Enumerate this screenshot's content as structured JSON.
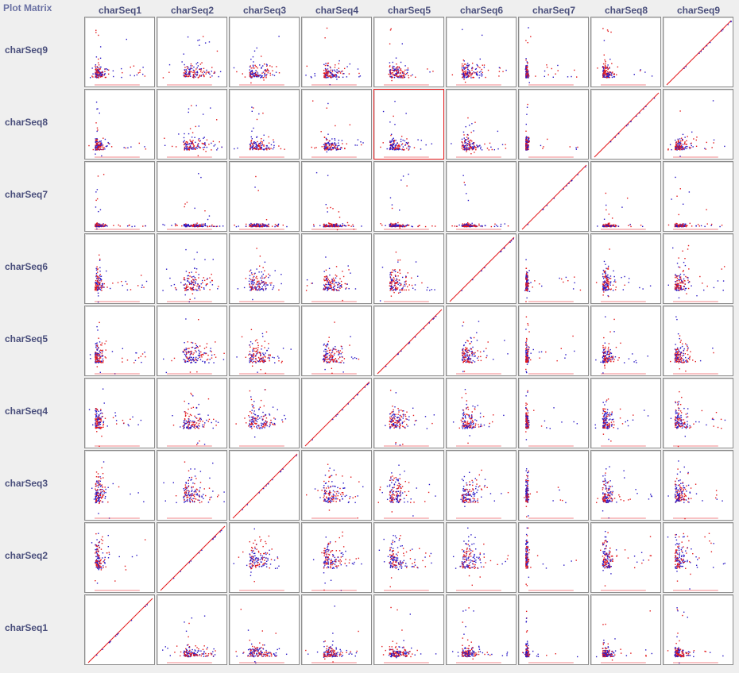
{
  "header": {
    "title": "Plot Matrix"
  },
  "selected_cell": {
    "row": "charSeq8",
    "col": "charSeq5"
  },
  "colors": {
    "series_a": "#e31a1c",
    "series_b": "#2b1ac6",
    "background": "#efefef",
    "cell_border": "#8c8c8c",
    "selected_border": "#e41a1c",
    "label_text": "#4a4f7c"
  },
  "chart_data": {
    "type": "scatter",
    "variables": [
      "charSeq1",
      "charSeq2",
      "charSeq3",
      "charSeq4",
      "charSeq5",
      "charSeq6",
      "charSeq7",
      "charSeq8",
      "charSeq9"
    ],
    "columns": [
      "charSeq1",
      "charSeq2",
      "charSeq3",
      "charSeq4",
      "charSeq5",
      "charSeq6",
      "charSeq7",
      "charSeq8",
      "charSeq9"
    ],
    "rows": [
      "charSeq9",
      "charSeq8",
      "charSeq7",
      "charSeq6",
      "charSeq5",
      "charSeq4",
      "charSeq3",
      "charSeq2",
      "charSeq1"
    ],
    "point_count_per_cell": 140,
    "diagonal": "identity line",
    "axis_ticks_shown": false,
    "grid": false,
    "legend": "none"
  }
}
